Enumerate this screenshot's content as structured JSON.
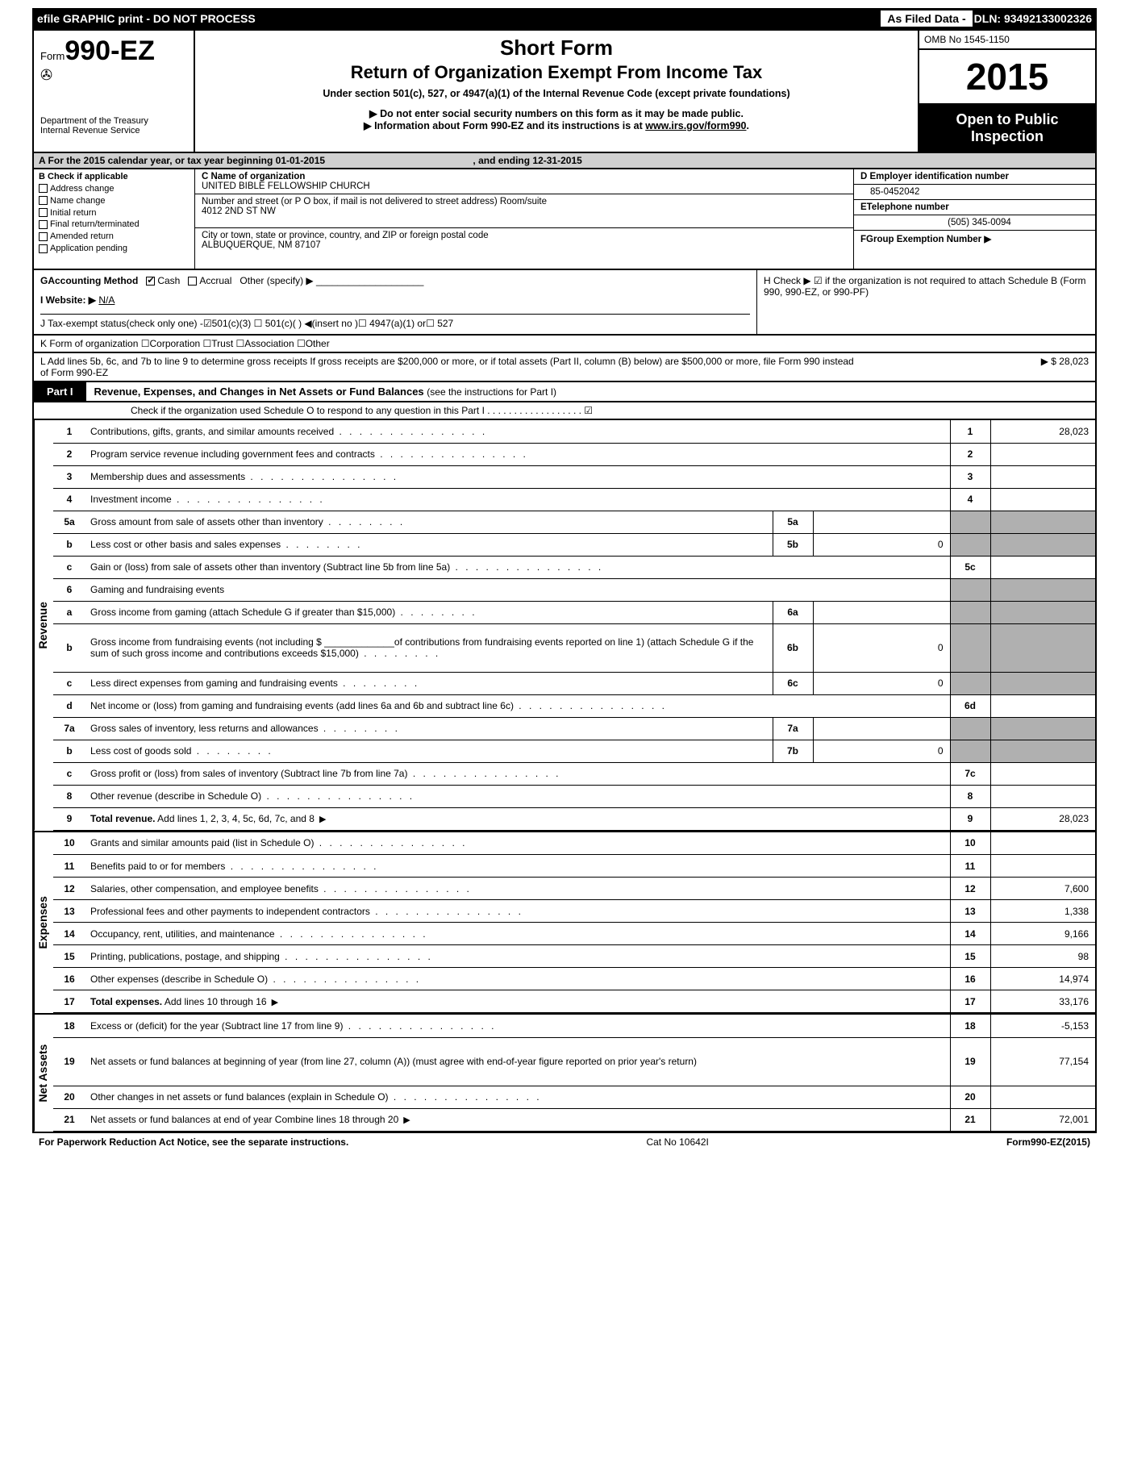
{
  "topbar": {
    "efile": "efile GRAPHIC print - DO NOT PROCESS",
    "asFiled": "As Filed Data -",
    "dln": "DLN: 93492133002326"
  },
  "header": {
    "formLabel": "Form",
    "formNumber": "990-EZ",
    "dept1": "Department of the Treasury",
    "dept2": "Internal Revenue Service",
    "title1": "Short Form",
    "title2": "Return of Organization Exempt From Income Tax",
    "subtitle": "Under section 501(c), 527, or 4947(a)(1) of the Internal Revenue Code (except private foundations)",
    "bullet1": "▶ Do not enter social security numbers on this form as it may be made public.",
    "bullet2a": "▶ Information about Form 990-EZ and its instructions is at ",
    "bullet2link": "www.irs.gov/form990",
    "omb": "OMB No 1545-1150",
    "year": "2015",
    "open1": "Open to Public",
    "open2": "Inspection"
  },
  "rowA": {
    "text": "A  For the 2015 calendar year, or tax year beginning 01-01-2015",
    "ending": ", and ending 12-31-2015"
  },
  "B": {
    "label": "B  Check if applicable",
    "opts": [
      "Address change",
      "Name change",
      "Initial return",
      "Final return/terminated",
      "Amended return",
      "Application pending"
    ]
  },
  "C": {
    "nameLabel": "C Name of organization",
    "name": "UNITED BIBLE FELLOWSHIP CHURCH",
    "streetLabel": "Number and street (or P  O  box, if mail is not delivered to street address) Room/suite",
    "street": "4012 2ND ST NW",
    "cityLabel": "City or town, state or province, country, and ZIP or foreign postal code",
    "city": "ALBUQUERQUE, NM  87107"
  },
  "D": {
    "einLabel": "D Employer identification number",
    "ein": "85-0452042",
    "telLabel": "ETelephone number",
    "tel": "(505) 345-0094",
    "groupLabel": "FGroup Exemption Number    ▶"
  },
  "G": {
    "label": "GAccounting Method",
    "cash": "Cash",
    "accrual": "Accrual",
    "other": "Other (specify) ▶"
  },
  "H": {
    "text": "H  Check ▶ ☑ if the organization is not required to attach Schedule B (Form 990, 990-EZ, or 990-PF)"
  },
  "I": {
    "label": "I Website: ▶",
    "val": "N/A"
  },
  "J": {
    "text": "J Tax-exempt status(check only one) -☑501(c)(3) ☐ 501(c)(  ) ◀(insert no )☐ 4947(a)(1) or☐ 527"
  },
  "K": {
    "text": "K Form of organization  ☐Corporation  ☐Trust  ☐Association  ☐Other"
  },
  "L": {
    "text": "L Add lines 5b, 6c, and 7b to line 9 to determine gross receipts  If gross receipts are $200,000 or more, or if total assets (Part II, column (B) below) are $500,000 or more, file Form 990 instead of Form 990-EZ",
    "amount": "▶ $ 28,023"
  },
  "part1": {
    "tag": "Part I",
    "title": "Revenue, Expenses, and Changes in Net Assets or Fund Balances",
    "sub": "(see the instructions for Part I)",
    "schedO": "Check if the organization used Schedule O to respond to any question in this Part I  .  .  .  .  .  .  .  .  .  .  .  .  .  .  .  .  .  . ☑"
  },
  "revenue": {
    "sideLabel": "Revenue",
    "lines": [
      {
        "n": "1",
        "desc": "Contributions, gifts, grants, and similar amounts received",
        "col": "1",
        "val": "28,023"
      },
      {
        "n": "2",
        "desc": "Program service revenue including government fees and contracts",
        "col": "2",
        "val": ""
      },
      {
        "n": "3",
        "desc": "Membership dues and assessments",
        "col": "3",
        "val": ""
      },
      {
        "n": "4",
        "desc": "Investment income",
        "col": "4",
        "val": ""
      },
      {
        "n": "5a",
        "desc": "Gross amount from sale of assets other than inventory",
        "sub": "5a",
        "subval": "",
        "shaded": true
      },
      {
        "n": "b",
        "desc": "Less  cost or other basis and sales expenses",
        "sub": "5b",
        "subval": "0",
        "shaded": true
      },
      {
        "n": "c",
        "desc": "Gain or (loss) from sale of assets other than inventory (Subtract line 5b from line 5a)",
        "col": "5c",
        "val": ""
      },
      {
        "n": "6",
        "desc": "Gaming and fundraising events",
        "shaded": true,
        "noright": true
      },
      {
        "n": "a",
        "desc": "Gross income from gaming (attach Schedule G if greater than $15,000)",
        "sub": "6a",
        "subval": "",
        "shaded": true
      },
      {
        "n": "b",
        "desc": "Gross income from fundraising events (not including $ _____________of contributions from fundraising events reported on line 1) (attach Schedule G if the sum of such gross income and contributions exceeds $15,000)",
        "sub": "6b",
        "subval": "0",
        "shaded": true,
        "tall": true
      },
      {
        "n": "c",
        "desc": "Less  direct expenses from gaming and fundraising events",
        "sub": "6c",
        "subval": "0",
        "shaded": true
      },
      {
        "n": "d",
        "desc": "Net income or (loss) from gaming and fundraising events (add lines 6a and 6b and subtract line 6c)",
        "col": "6d",
        "val": ""
      },
      {
        "n": "7a",
        "desc": "Gross sales of inventory, less returns and allowances",
        "sub": "7a",
        "subval": "",
        "shaded": true
      },
      {
        "n": "b",
        "desc": "Less  cost of goods sold",
        "sub": "7b",
        "subval": "0",
        "shaded": true
      },
      {
        "n": "c",
        "desc": "Gross profit or (loss) from sales of inventory (Subtract line 7b from line 7a)",
        "col": "7c",
        "val": ""
      },
      {
        "n": "8",
        "desc": "Other revenue (describe in Schedule O)",
        "col": "8",
        "val": ""
      },
      {
        "n": "9",
        "desc": "Total revenue. Add lines 1, 2, 3, 4, 5c, 6d, 7c, and 8",
        "col": "9",
        "val": "28,023",
        "bold": true,
        "arrow": true
      }
    ]
  },
  "expenses": {
    "sideLabel": "Expenses",
    "lines": [
      {
        "n": "10",
        "desc": "Grants and similar amounts paid (list in Schedule O)",
        "col": "10",
        "val": ""
      },
      {
        "n": "11",
        "desc": "Benefits paid to or for members",
        "col": "11",
        "val": ""
      },
      {
        "n": "12",
        "desc": "Salaries, other compensation, and employee benefits",
        "col": "12",
        "val": "7,600"
      },
      {
        "n": "13",
        "desc": "Professional fees and other payments to independent contractors",
        "col": "13",
        "val": "1,338"
      },
      {
        "n": "14",
        "desc": "Occupancy, rent, utilities, and maintenance",
        "col": "14",
        "val": "9,166"
      },
      {
        "n": "15",
        "desc": "Printing, publications, postage, and shipping",
        "col": "15",
        "val": "98"
      },
      {
        "n": "16",
        "desc": "Other expenses (describe in Schedule O)",
        "col": "16",
        "val": "14,974"
      },
      {
        "n": "17",
        "desc": "Total expenses. Add lines 10 through 16",
        "col": "17",
        "val": "33,176",
        "bold": true,
        "arrow": true
      }
    ]
  },
  "netassets": {
    "sideLabel": "Net Assets",
    "lines": [
      {
        "n": "18",
        "desc": "Excess or (deficit) for the year (Subtract line 17 from line 9)",
        "col": "18",
        "val": "-5,153"
      },
      {
        "n": "19",
        "desc": "Net assets or fund balances at beginning of year (from line 27, column (A)) (must agree with end-of-year figure reported on prior year's return)",
        "col": "19",
        "val": "77,154",
        "tall": true,
        "shadedTop": true
      },
      {
        "n": "20",
        "desc": "Other changes in net assets or fund balances (explain in Schedule O)",
        "col": "20",
        "val": ""
      },
      {
        "n": "21",
        "desc": "Net assets or fund balances at end of year  Combine lines 18 through 20",
        "col": "21",
        "val": "72,001",
        "arrow": true
      }
    ]
  },
  "footer": {
    "left": "For Paperwork Reduction Act Notice, see the separate instructions.",
    "mid": "Cat No 10642I",
    "right": "Form990-EZ(2015)"
  }
}
